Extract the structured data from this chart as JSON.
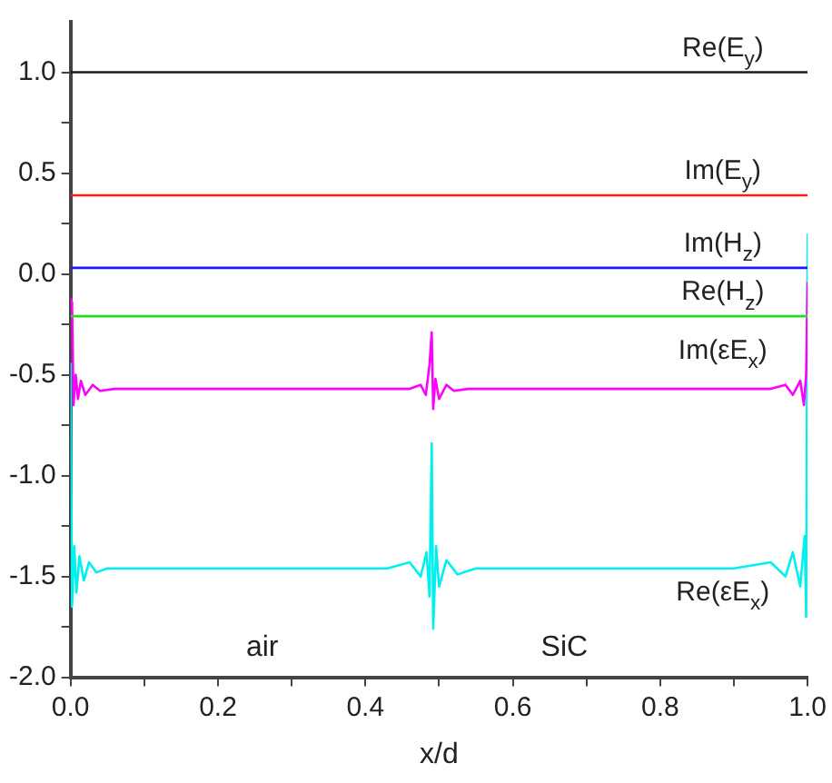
{
  "chart_data": {
    "type": "line",
    "xlabel": "x/d",
    "xlim": [
      0,
      1
    ],
    "ylim": [
      -2,
      1.25
    ],
    "xticks": [
      {
        "value": 0,
        "label": "0.0"
      },
      {
        "value": 0.1,
        "label": null
      },
      0.2,
      {
        "value": 0.3,
        "label": null
      },
      0.4,
      {
        "value": 0.5,
        "label": null
      },
      0.6,
      {
        "value": 0.7,
        "label": null
      },
      0.8,
      {
        "value": 0.9,
        "label": null
      },
      {
        "value": 1,
        "label": "1.0"
      }
    ],
    "yticks": [
      {
        "value": -2,
        "label": "-2.0"
      },
      {
        "value": -1.75,
        "label": null
      },
      -1.5,
      {
        "value": -1.25,
        "label": null
      },
      {
        "value": -1,
        "label": "-1.0"
      },
      {
        "value": -0.75,
        "label": null
      },
      -0.5,
      {
        "value": -0.25,
        "label": null
      },
      {
        "value": 0,
        "label": "0.0"
      },
      {
        "value": 0.25,
        "label": null
      },
      0.5,
      {
        "value": 0.75,
        "label": null
      },
      {
        "value": 1,
        "label": "1.0"
      }
    ],
    "grid": false,
    "legend": false,
    "marker": "none",
    "line_style": "solid",
    "series": [
      {
        "name": "Re(E$_{y}$)",
        "color": "#1a1a1a",
        "x": [
          0,
          1
        ],
        "values": [
          1.0,
          1.0
        ]
      },
      {
        "name": "Im(E$_{y}$)",
        "color": "#ff1a1a",
        "x": [
          0,
          1
        ],
        "values": [
          0.39,
          0.39
        ]
      },
      {
        "name": "Im(H$_{z}$)",
        "color": "#1a1aff",
        "x": [
          0,
          1
        ],
        "values": [
          0.03,
          0.03
        ]
      },
      {
        "name": "Re(H$_{z}$)",
        "color": "#22dd22",
        "x": [
          0,
          1
        ],
        "values": [
          -0.21,
          -0.21
        ]
      },
      {
        "name": "Im(εE$_{x}$)",
        "color": "#ff00ff",
        "x": [
          0,
          0.002,
          0.004,
          0.007,
          0.01,
          0.014,
          0.02,
          0.03,
          0.04,
          0.06,
          0.46,
          0.475,
          0.482,
          0.487,
          0.49,
          0.492,
          0.495,
          0.5,
          0.51,
          0.52,
          0.54,
          0.95,
          0.97,
          0.98,
          0.99,
          0.995,
          0.998,
          1.0
        ],
        "values": [
          -0.12,
          -0.14,
          -0.65,
          -0.5,
          -0.62,
          -0.53,
          -0.6,
          -0.55,
          -0.58,
          -0.57,
          -0.57,
          -0.55,
          -0.6,
          -0.45,
          -0.29,
          -0.67,
          -0.52,
          -0.62,
          -0.55,
          -0.58,
          -0.57,
          -0.57,
          -0.55,
          -0.6,
          -0.53,
          -0.65,
          -0.5,
          -0.04
        ]
      },
      {
        "name": "Re(εE$_{x}$)",
        "color": "#00f0f0",
        "x": [
          0,
          0.002,
          0.005,
          0.008,
          0.012,
          0.018,
          0.025,
          0.035,
          0.05,
          0.43,
          0.46,
          0.475,
          0.483,
          0.487,
          0.49,
          0.492,
          0.496,
          0.5,
          0.51,
          0.525,
          0.55,
          0.9,
          0.95,
          0.97,
          0.98,
          0.99,
          0.996,
          0.998,
          1.0
        ],
        "values": [
          -0.44,
          -1.65,
          -1.35,
          -1.58,
          -1.4,
          -1.52,
          -1.43,
          -1.48,
          -1.46,
          -1.46,
          -1.43,
          -1.5,
          -1.38,
          -1.6,
          -0.84,
          -1.76,
          -1.35,
          -1.55,
          -1.42,
          -1.49,
          -1.46,
          -1.46,
          -1.43,
          -1.5,
          -1.38,
          -1.55,
          -1.3,
          -1.7,
          0.2
        ]
      }
    ],
    "annotations": [
      "air",
      "SiC"
    ]
  }
}
